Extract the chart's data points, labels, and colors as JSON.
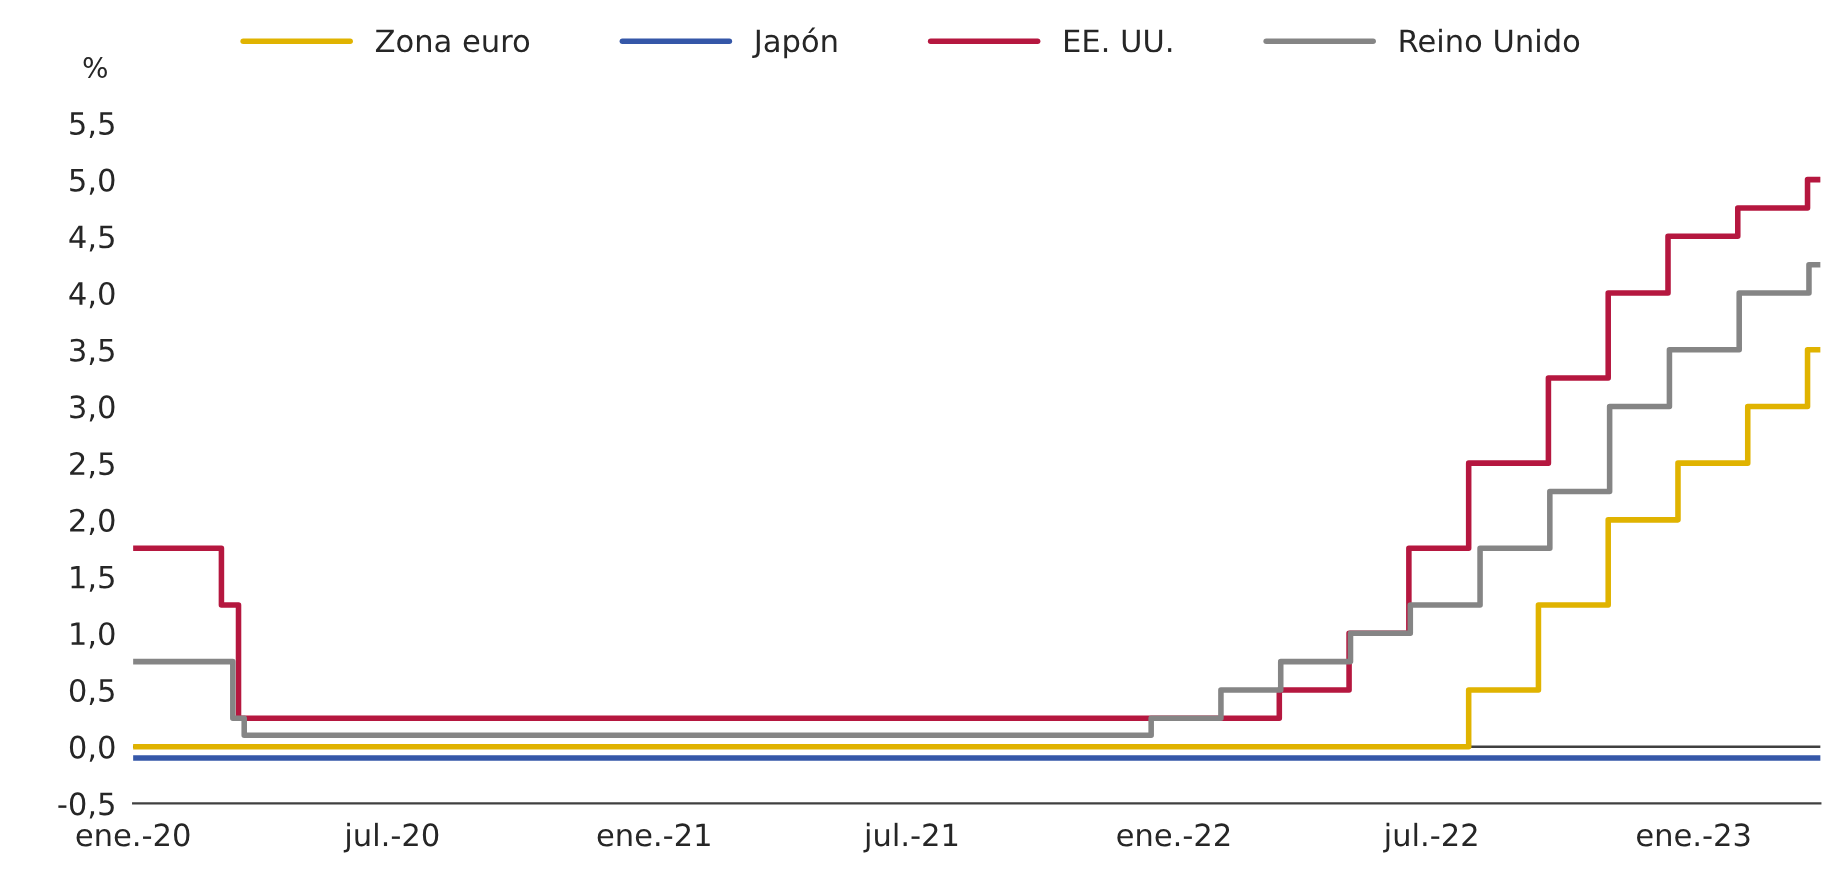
{
  "chart_data": {
    "type": "step",
    "ylabel": "%",
    "legend": "top",
    "grid": false,
    "marker": "none",
    "line_style": "solid",
    "xlim": [
      "2020-01-01",
      "2023-03-31"
    ],
    "ylim": [
      -0.5,
      5.5
    ],
    "xticks": [
      {
        "value": "2020-01",
        "label": "ene.-20"
      },
      {
        "value": "2020-07",
        "label": "jul.-20"
      },
      {
        "value": "2021-01",
        "label": "ene.-21"
      },
      {
        "value": "2021-07",
        "label": "jul.-21"
      },
      {
        "value": "2022-01",
        "label": "ene.-22"
      },
      {
        "value": "2022-07",
        "label": "jul.-22"
      },
      {
        "value": "2023-01",
        "label": "ene.-23"
      }
    ],
    "yticks": [
      {
        "value": -0.5,
        "label": "-0,5"
      },
      {
        "value": 0,
        "label": "0,0"
      },
      {
        "value": 0.5,
        "label": "0,5"
      },
      {
        "value": 1,
        "label": "1,0"
      },
      {
        "value": 1.5,
        "label": "1,5"
      },
      {
        "value": 2,
        "label": "2,0"
      },
      {
        "value": 2.5,
        "label": "2,5"
      },
      {
        "value": 3,
        "label": "3,0"
      },
      {
        "value": 3.5,
        "label": "3,5"
      },
      {
        "value": 4,
        "label": "4,0"
      },
      {
        "value": 4.5,
        "label": "4,5"
      },
      {
        "value": 5,
        "label": "5,0"
      },
      {
        "value": 5.5,
        "label": "5,5"
      }
    ],
    "ref_lines": [
      {
        "axis": "y",
        "value": 0,
        "color": "#404040"
      }
    ],
    "series": [
      {
        "name": "Zona euro",
        "color": "#e0b300",
        "x": [
          "2020-01-01",
          "2022-07-27",
          "2022-09-14",
          "2022-11-02",
          "2022-12-21",
          "2023-02-08",
          "2023-03-22",
          "2023-03-31"
        ],
        "values": [
          0,
          0.5,
          1.25,
          2.0,
          2.5,
          3.0,
          3.5,
          3.5
        ]
      },
      {
        "name": "Japón",
        "color": "#3557a8",
        "x": [
          "2020-01-01",
          "2023-03-31"
        ],
        "values": [
          -0.1,
          -0.1
        ]
      },
      {
        "name": "EE. UU.",
        "color": "#b5173f",
        "x": [
          "2020-01-01",
          "2020-03-03",
          "2020-03-15",
          "2022-03-16",
          "2022-05-04",
          "2022-06-15",
          "2022-07-27",
          "2022-09-21",
          "2022-11-02",
          "2022-12-14",
          "2023-02-01",
          "2023-03-22",
          "2023-03-31"
        ],
        "values": [
          1.75,
          1.25,
          0.25,
          0.5,
          1.0,
          1.75,
          2.5,
          3.25,
          4.0,
          4.5,
          4.75,
          5.0,
          5.0
        ]
      },
      {
        "name": "Reino Unido",
        "color": "#858585",
        "x": [
          "2020-01-01",
          "2020-03-11",
          "2020-03-19",
          "2021-12-16",
          "2022-02-03",
          "2022-03-17",
          "2022-05-05",
          "2022-06-16",
          "2022-08-04",
          "2022-09-22",
          "2022-11-03",
          "2022-12-15",
          "2023-02-02",
          "2023-03-23",
          "2023-03-31"
        ],
        "values": [
          0.75,
          0.25,
          0.1,
          0.25,
          0.5,
          0.75,
          1.0,
          1.25,
          1.75,
          2.25,
          3.0,
          3.5,
          4.0,
          4.25,
          4.25
        ]
      }
    ]
  }
}
